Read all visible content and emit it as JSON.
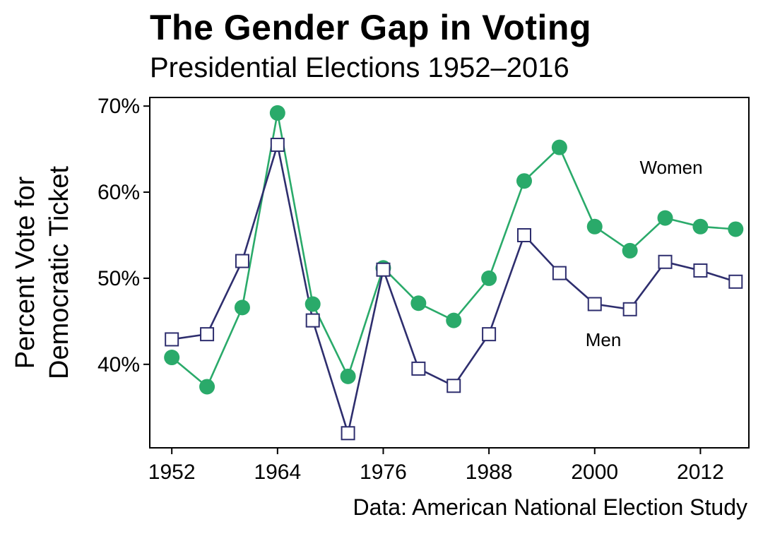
{
  "title": "The Gender Gap in Voting",
  "subtitle": "Presidential Elections 1952–2016",
  "caption": "Data: American National Election Study",
  "colors": {
    "women": "#2aaa6a",
    "men": "#2e2e6e"
  },
  "chart_data": {
    "type": "line",
    "title": "The Gender Gap in Voting",
    "subtitle": "Presidential Elections 1952–2016",
    "xlabel": "",
    "ylabel_lines": [
      "Percent Vote for",
      "Democratic Ticket"
    ],
    "x": [
      1952,
      1956,
      1960,
      1964,
      1968,
      1972,
      1976,
      1980,
      1984,
      1988,
      1992,
      1996,
      2000,
      2004,
      2008,
      2012,
      2016
    ],
    "xticks": [
      1952,
      1964,
      1976,
      1988,
      2000,
      2012
    ],
    "xtick_labels": [
      "1952",
      "1964",
      "1976",
      "1988",
      "2000",
      "2012"
    ],
    "yticks": [
      40,
      50,
      60,
      70
    ],
    "ytick_labels": [
      "40%",
      "50%",
      "60%",
      "70%"
    ],
    "xlim": [
      1949.5,
      2017.5
    ],
    "ylim": [
      30.3,
      71
    ],
    "grid": false,
    "series": [
      {
        "name": "Women",
        "marker": "filled-circle",
        "values": [
          40.8,
          37.4,
          46.6,
          69.2,
          47.0,
          38.6,
          51.2,
          47.1,
          45.1,
          50.0,
          61.3,
          65.2,
          56.0,
          53.2,
          57.0,
          56.0,
          55.7
        ]
      },
      {
        "name": "Men",
        "marker": "open-square",
        "values": [
          42.9,
          43.5,
          52.0,
          65.5,
          45.1,
          32.0,
          51.0,
          39.5,
          37.5,
          43.5,
          55.0,
          50.6,
          47.0,
          46.4,
          51.9,
          50.9,
          49.6
        ]
      }
    ]
  }
}
